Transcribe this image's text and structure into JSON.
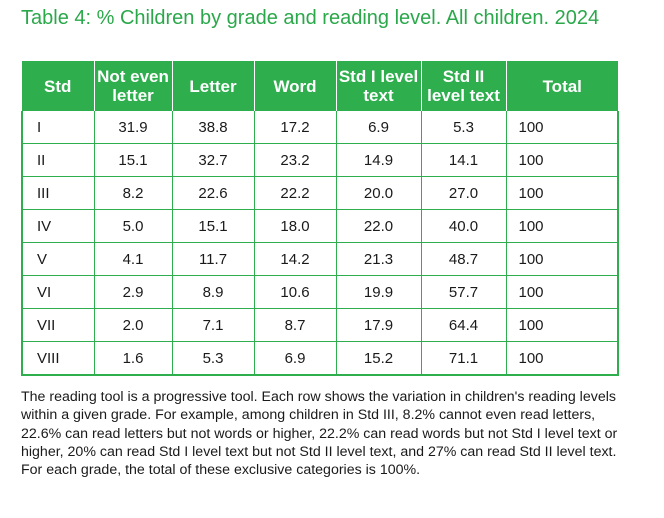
{
  "title": "Table 4: % Children by grade and reading level. All children. 2024",
  "table": {
    "headers": [
      "Std",
      "Not even letter",
      "Letter",
      "Word",
      "Std I level text",
      "Std II level text",
      "Total"
    ],
    "rows": [
      [
        "I",
        "31.9",
        "38.8",
        "17.2",
        "6.9",
        "5.3",
        "100"
      ],
      [
        "II",
        "15.1",
        "32.7",
        "23.2",
        "14.9",
        "14.1",
        "100"
      ],
      [
        "III",
        "8.2",
        "22.6",
        "22.2",
        "20.0",
        "27.0",
        "100"
      ],
      [
        "IV",
        "5.0",
        "15.1",
        "18.0",
        "22.0",
        "40.0",
        "100"
      ],
      [
        "V",
        "4.1",
        "11.7",
        "14.2",
        "21.3",
        "48.7",
        "100"
      ],
      [
        "VI",
        "2.9",
        "8.9",
        "10.6",
        "19.9",
        "57.7",
        "100"
      ],
      [
        "VII",
        "2.0",
        "7.1",
        "8.7",
        "17.9",
        "64.4",
        "100"
      ],
      [
        "VIII",
        "1.6",
        "5.3",
        "6.9",
        "15.2",
        "71.1",
        "100"
      ]
    ]
  },
  "note": "The reading tool is a progressive tool. Each row shows the variation in children's reading levels within a given grade. For example, among children in Std III, 8.2% cannot even read letters, 22.6% can read letters but not words or higher, 22.2% can read words but not Std I level text or higher, 20% can read Std I level text but not Std II level text, and 27% can read Std II level text. For each grade, the total of these exclusive categories is 100%.",
  "colors": {
    "accent": "#2fae4e",
    "title": "#2aa84a"
  }
}
